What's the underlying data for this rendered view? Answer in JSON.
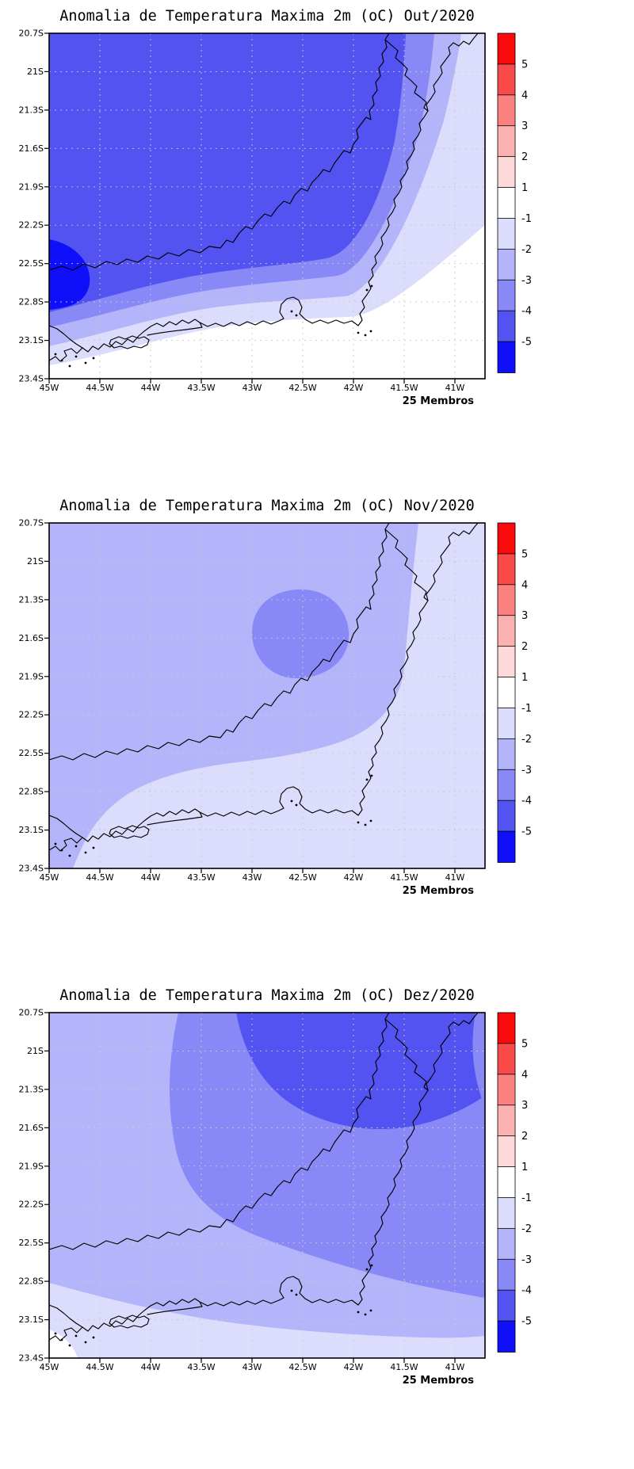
{
  "axes": {
    "lat_labels": [
      "20.7S",
      "21S",
      "21.3S",
      "21.6S",
      "21.9S",
      "22.2S",
      "22.5S",
      "22.8S",
      "23.1S",
      "23.4S"
    ],
    "lon_labels": [
      "45W",
      "44.5W",
      "44W",
      "43.5W",
      "43W",
      "42.5W",
      "42W",
      "41.5W",
      "41W"
    ]
  },
  "colorbar": {
    "tick_labels": [
      "5",
      "4",
      "3",
      "2",
      "1",
      "-1",
      "-2",
      "-3",
      "-4",
      "-5"
    ],
    "segment_colors_top_to_bottom": [
      "#fa0a0a",
      "#fa4b4b",
      "#fb8080",
      "#fcb1b1",
      "#fdd9d9",
      "#ffffff",
      "#dcdcfd",
      "#b4b4fa",
      "#8888f7",
      "#5353f2",
      "#0f0ffa"
    ]
  },
  "panels": [
    {
      "title": "Anomalia de Temperatura Maxima 2m (oC) Out/2020",
      "footer": "25 Membros"
    },
    {
      "title": "Anomalia de Temperatura Maxima 2m (oC) Nov/2020",
      "footer": "25 Membros"
    },
    {
      "title": "Anomalia de Temperatura Maxima 2m (oC) Dez/2020",
      "footer": "25 Membros"
    }
  ],
  "chart_data": [
    {
      "type": "heatmap",
      "title": "Anomalia de Temperatura Maxima 2m (oC) Out/2020",
      "variable": "2m maximum temperature anomaly (oC)",
      "ensemble_label": "25 Membros",
      "x_tick_labels": [
        "45W",
        "44.5W",
        "44W",
        "43.5W",
        "43W",
        "42.5W",
        "42W",
        "41.5W",
        "41W"
      ],
      "y_tick_labels": [
        "20.7S",
        "21S",
        "21.3S",
        "21.6S",
        "21.9S",
        "22.2S",
        "22.5S",
        "22.8S",
        "23.1S",
        "23.4S"
      ],
      "contour_levels": [
        -5,
        -4,
        -3,
        -2,
        -1,
        1,
        2,
        3,
        4,
        5
      ],
      "legend_position": "right",
      "grid": true,
      "values_lat_rows_by_lon_cols": [
        [
          -4,
          -4,
          -4,
          -4,
          -4,
          -4,
          -4,
          -3,
          -2
        ],
        [
          -4,
          -4,
          -4,
          -4,
          -4,
          -4,
          -4,
          -3,
          -2
        ],
        [
          -4,
          -4,
          -4,
          -4,
          -4,
          -4,
          -4,
          -3,
          -2
        ],
        [
          -4,
          -4,
          -4,
          -4,
          -4,
          -4,
          -3,
          -2,
          -2
        ],
        [
          -4,
          -4,
          -4,
          -4,
          -4,
          -4,
          -3,
          -2,
          -1
        ],
        [
          -4,
          -4,
          -4,
          -4,
          -4,
          -3,
          -3,
          -2,
          0
        ],
        [
          -5,
          -4,
          -4,
          -3,
          -3,
          -3,
          -2,
          -1,
          0
        ],
        [
          -5,
          -3,
          -3,
          -2,
          -2,
          -2,
          -1,
          0,
          0
        ],
        [
          -3,
          -2,
          -2,
          -1,
          -1,
          -1,
          0,
          0,
          0
        ],
        [
          -1,
          -1,
          -1,
          0,
          0,
          0,
          0,
          0,
          0
        ]
      ]
    },
    {
      "type": "heatmap",
      "title": "Anomalia de Temperatura Maxima 2m (oC) Nov/2020",
      "variable": "2m maximum temperature anomaly (oC)",
      "ensemble_label": "25 Membros",
      "x_tick_labels": [
        "45W",
        "44.5W",
        "44W",
        "43.5W",
        "43W",
        "42.5W",
        "42W",
        "41.5W",
        "41W"
      ],
      "y_tick_labels": [
        "20.7S",
        "21S",
        "21.3S",
        "21.6S",
        "21.9S",
        "22.2S",
        "22.5S",
        "22.8S",
        "23.1S",
        "23.4S"
      ],
      "contour_levels": [
        -5,
        -4,
        -3,
        -2,
        -1,
        1,
        2,
        3,
        4,
        5
      ],
      "legend_position": "right",
      "grid": true,
      "values_lat_rows_by_lon_cols": [
        [
          -2,
          -2,
          -2,
          -2,
          -2,
          -2,
          -2,
          -2,
          -1
        ],
        [
          -2,
          -2,
          -2,
          -2,
          -2,
          -2,
          -2,
          -1,
          -1
        ],
        [
          -2,
          -2,
          -2,
          -2,
          -3,
          -3,
          -2,
          -1,
          -1
        ],
        [
          -2,
          -2,
          -2,
          -2,
          -3,
          -3,
          -2,
          -1,
          -1
        ],
        [
          -2,
          -2,
          -2,
          -2,
          -2,
          -2,
          -2,
          -1,
          -1
        ],
        [
          -2,
          -2,
          -2,
          -2,
          -2,
          -2,
          -1,
          -1,
          -1
        ],
        [
          -2,
          -2,
          -2,
          -1,
          -1,
          -1,
          -1,
          -1,
          -1
        ],
        [
          -2,
          -1,
          -1,
          -1,
          -1,
          -1,
          -1,
          -1,
          -1
        ],
        [
          -2,
          -2,
          -1,
          -1,
          -1,
          -1,
          -1,
          -1,
          -1
        ],
        [
          -2,
          -2,
          -1,
          -1,
          -1,
          -1,
          -1,
          -1,
          -1
        ]
      ]
    },
    {
      "type": "heatmap",
      "title": "Anomalia de Temperatura Maxima 2m (oC) Dez/2020",
      "variable": "2m maximum temperature anomaly (oC)",
      "ensemble_label": "25 Membros",
      "x_tick_labels": [
        "45W",
        "44.5W",
        "44W",
        "43.5W",
        "43W",
        "42.5W",
        "42W",
        "41.5W",
        "41W"
      ],
      "y_tick_labels": [
        "20.7S",
        "21S",
        "21.3S",
        "21.6S",
        "21.9S",
        "22.2S",
        "22.5S",
        "22.8S",
        "23.1S",
        "23.4S"
      ],
      "contour_levels": [
        -5,
        -4,
        -3,
        -2,
        -1,
        1,
        2,
        3,
        4,
        5
      ],
      "legend_position": "right",
      "grid": true,
      "values_lat_rows_by_lon_cols": [
        [
          -2,
          -2,
          -3,
          -4,
          -4,
          -4,
          -4,
          -4,
          -3
        ],
        [
          -2,
          -3,
          -3,
          -4,
          -4,
          -4,
          -4,
          -4,
          -3
        ],
        [
          -2,
          -3,
          -3,
          -3,
          -4,
          -4,
          -4,
          -4,
          -3
        ],
        [
          -2,
          -2,
          -3,
          -3,
          -3,
          -3,
          -3,
          -3,
          -3
        ],
        [
          -2,
          -2,
          -3,
          -3,
          -3,
          -3,
          -3,
          -3,
          -2
        ],
        [
          -2,
          -2,
          -2,
          -3,
          -3,
          -3,
          -3,
          -2,
          -2
        ],
        [
          -2,
          -2,
          -2,
          -2,
          -2,
          -3,
          -2,
          -2,
          -2
        ],
        [
          -1,
          -2,
          -2,
          -2,
          -2,
          -2,
          -2,
          -2,
          -2
        ],
        [
          -1,
          -1,
          -1,
          -2,
          -2,
          -2,
          -2,
          -2,
          -2
        ],
        [
          0,
          -1,
          -1,
          -1,
          -1,
          -2,
          -2,
          -2,
          -1
        ]
      ]
    }
  ]
}
